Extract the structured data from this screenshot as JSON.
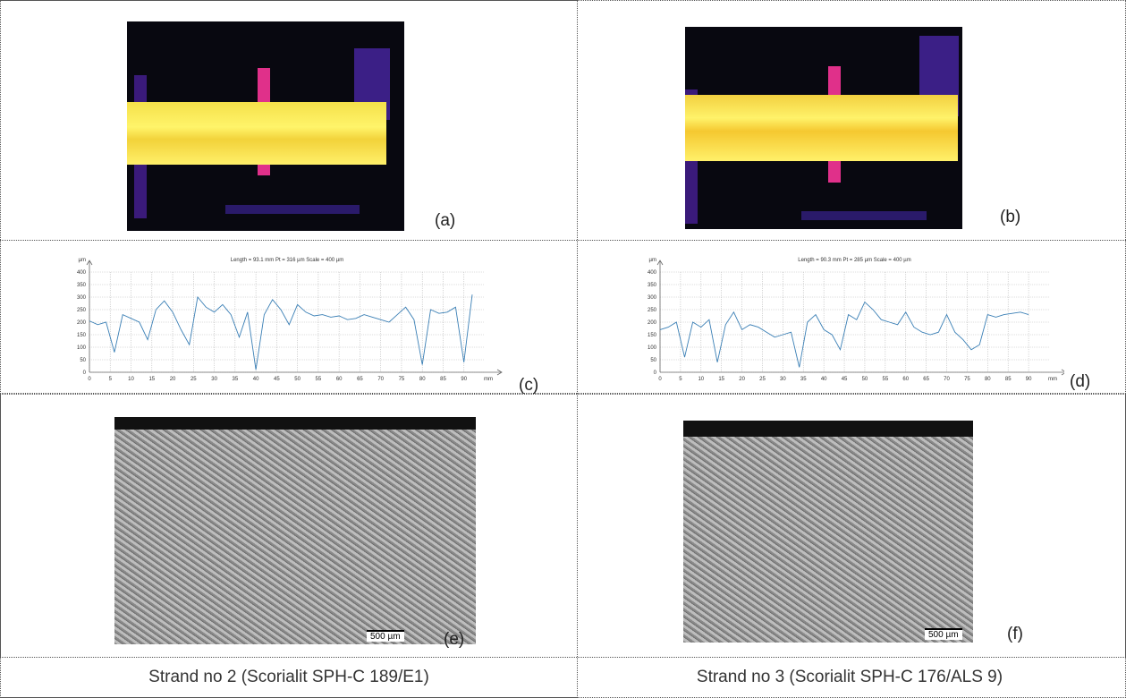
{
  "panels": [
    {
      "label": "(a)"
    },
    {
      "label": "(b)"
    },
    {
      "label": "(c)"
    },
    {
      "label": "(d)"
    },
    {
      "label": "(e)",
      "scale_bar": "500 µm"
    },
    {
      "label": "(f)",
      "scale_bar": "500 µm"
    }
  ],
  "captions": [
    "Strand no 2 (Scorialit SPH-C 189/E1)",
    "Strand no 3 (Scorialit SPH-C 176/ALS 9)"
  ],
  "chart_data": [
    {
      "type": "line",
      "title": "Length = 93.1 mm  Pt = 316 µm  Scale = 400 µm",
      "x_label": "mm",
      "y_label": "µm",
      "color": "#3a7fb5",
      "grid": true,
      "xlim": [
        0,
        95
      ],
      "ylim": [
        0,
        400
      ],
      "xticks": [
        0,
        5,
        10,
        15,
        20,
        25,
        30,
        35,
        40,
        45,
        50,
        55,
        60,
        65,
        70,
        75,
        80,
        85,
        90
      ],
      "yticks": [
        0,
        50,
        100,
        150,
        200,
        250,
        300,
        350,
        400
      ],
      "x": [
        0,
        2,
        4,
        6,
        8,
        10,
        12,
        14,
        16,
        18,
        20,
        22,
        24,
        26,
        28,
        30,
        32,
        34,
        36,
        38,
        40,
        42,
        44,
        46,
        48,
        50,
        52,
        54,
        56,
        58,
        60,
        62,
        64,
        66,
        68,
        70,
        72,
        74,
        76,
        78,
        80,
        82,
        84,
        86,
        88,
        90,
        92
      ],
      "values": [
        205,
        190,
        200,
        80,
        230,
        215,
        200,
        130,
        250,
        285,
        240,
        170,
        110,
        300,
        260,
        240,
        270,
        230,
        140,
        240,
        10,
        230,
        290,
        250,
        190,
        270,
        240,
        225,
        230,
        220,
        225,
        210,
        215,
        230,
        220,
        210,
        200,
        230,
        260,
        210,
        30,
        250,
        235,
        240,
        260,
        40,
        310
      ]
    },
    {
      "type": "line",
      "title": "Length = 90.3 mm  Pt = 285 µm  Scale = 400 µm",
      "x_label": "mm",
      "y_label": "µm",
      "color": "#3a7fb5",
      "grid": true,
      "xlim": [
        0,
        95
      ],
      "ylim": [
        0,
        400
      ],
      "xticks": [
        0,
        5,
        10,
        15,
        20,
        25,
        30,
        35,
        40,
        45,
        50,
        55,
        60,
        65,
        70,
        75,
        80,
        85,
        90
      ],
      "yticks": [
        0,
        50,
        100,
        150,
        200,
        250,
        300,
        350,
        400
      ],
      "x": [
        0,
        2,
        4,
        6,
        8,
        10,
        12,
        14,
        16,
        18,
        20,
        22,
        24,
        26,
        28,
        30,
        32,
        34,
        36,
        38,
        40,
        42,
        44,
        46,
        48,
        50,
        52,
        54,
        56,
        58,
        60,
        62,
        64,
        66,
        68,
        70,
        72,
        74,
        76,
        78,
        80,
        82,
        84,
        86,
        88,
        90
      ],
      "values": [
        170,
        180,
        200,
        60,
        200,
        180,
        210,
        40,
        190,
        240,
        170,
        190,
        180,
        160,
        140,
        150,
        160,
        20,
        200,
        230,
        170,
        150,
        90,
        230,
        210,
        280,
        250,
        210,
        200,
        190,
        240,
        180,
        160,
        150,
        160,
        230,
        160,
        130,
        90,
        110,
        230,
        220,
        230,
        235,
        240,
        230
      ]
    }
  ]
}
